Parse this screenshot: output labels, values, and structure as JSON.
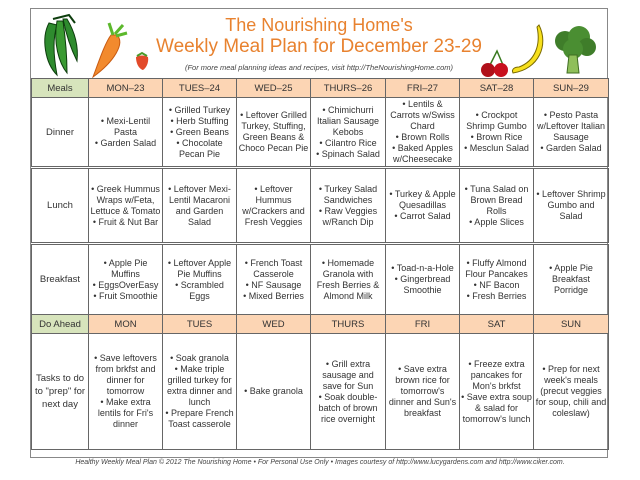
{
  "header": {
    "title_line1": "The Nourishing Home's",
    "title_line2": "Weekly Meal Plan for December 23-29",
    "subtitle": "(For more meal planning ideas and recipes, visit http://TheNourishingHome.com)",
    "images": [
      "peas-icon",
      "carrot-icon",
      "strawberry-icon",
      "cherries-icon",
      "banana-icon",
      "broccoli-icon"
    ]
  },
  "colors": {
    "title": "#e8822f",
    "day_header": "#fcd5b4",
    "label_header": "#d7e4bc"
  },
  "table": {
    "header": [
      "Meals",
      "MON–23",
      "TUES–24",
      "WED–25",
      "THURS–26",
      "FRI–27",
      "SAT–28",
      "SUN–29"
    ],
    "rows": [
      {
        "label": "Dinner",
        "cells": [
          [
            "• Mexi-Lentil Pasta",
            "• Garden Salad"
          ],
          [
            "• Grilled Turkey",
            "• Herb Stuffing",
            "• Green Beans",
            "• Chocolate Pecan Pie"
          ],
          [
            "• Leftover Grilled Turkey, Stuffing, Green Beans & Choco Pecan Pie"
          ],
          [
            "• Chimichurri Italian Sausage Kebobs",
            "• Cilantro Rice",
            "• Spinach Salad"
          ],
          [
            "• Lentils & Carrots w/Swiss Chard",
            "• Brown Rolls",
            "• Baked Apples w/Cheesecake"
          ],
          [
            "• Crockpot Shrimp Gumbo",
            "• Brown Rice",
            "• Mesclun Salad"
          ],
          [
            "• Pesto Pasta w/Leftover Italian Sausage",
            "• Garden Salad"
          ]
        ]
      },
      {
        "label": "Lunch",
        "cells": [
          [
            "• Greek Hummus Wraps w/Feta, Lettuce & Tomato",
            "• Fruit & Nut Bar"
          ],
          [
            "• Leftover Mexi-Lentil Macaroni and Garden Salad"
          ],
          [
            "• Leftover Hummus w/Crackers and Fresh Veggies"
          ],
          [
            "• Turkey Salad Sandwiches",
            "• Raw Veggies w/Ranch Dip"
          ],
          [
            "• Turkey & Apple Quesadillas",
            "• Carrot Salad"
          ],
          [
            "• Tuna Salad on Brown Bread Rolls",
            "• Apple Slices"
          ],
          [
            "• Leftover Shrimp Gumbo and Salad"
          ]
        ]
      },
      {
        "label": "Breakfast",
        "cells": [
          [
            "• Apple Pie Muffins",
            "• EggsOverEasy",
            "• Fruit Smoothie"
          ],
          [
            "• Leftover Apple Pie Muffins",
            "• Scrambled Eggs"
          ],
          [
            "• French Toast Casserole",
            "• NF Sausage",
            "• Mixed Berries"
          ],
          [
            "• Homemade Granola with Fresh Berries & Almond Milk"
          ],
          [
            "• Toad-n-a-Hole",
            "• Gingerbread Smoothie"
          ],
          [
            "• Fluffy Almond Flour Pancakes",
            "• NF Bacon",
            "• Fresh Berries"
          ],
          [
            "• Apple Pie Breakfast Porridge"
          ]
        ]
      }
    ],
    "do_ahead_header": [
      "Do Ahead",
      "MON",
      "TUES",
      "WED",
      "THURS",
      "FRI",
      "SAT",
      "SUN"
    ],
    "do_ahead_row": {
      "label": "Tasks to do to \"prep\" for next day",
      "cells": [
        [
          "• Save leftovers from brkfst and dinner for tomorrow",
          "• Make extra lentils for Fri's dinner"
        ],
        [
          "• Soak granola",
          "• Make triple grilled turkey for extra dinner and lunch",
          "• Prepare French Toast casserole"
        ],
        [
          "• Bake granola"
        ],
        [
          "• Grill extra sausage and save for Sun",
          "• Soak double-batch of brown rice overnight"
        ],
        [
          "• Save extra brown rice for tomorrow's dinner and Sun's breakfast"
        ],
        [
          "• Freeze extra pancakes for Mon's brkfst",
          "• Save extra soup & salad for tomorrow's lunch"
        ],
        [
          "• Prep for next week's meals (precut veggies for soup, chili and coleslaw)"
        ]
      ]
    }
  },
  "footer": "Healthy Weekly Meal Plan © 2012 The Nourishing Home • For Personal Use Only • Images courtesy of http://www.lucygardens.com and http://www.ciker.com."
}
